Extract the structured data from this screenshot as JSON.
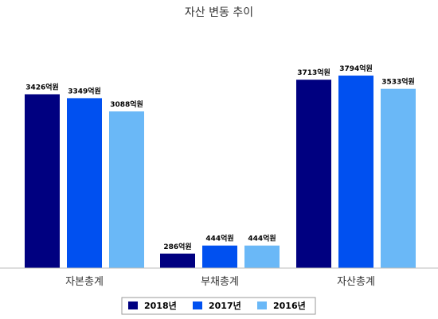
{
  "chart_data": {
    "type": "bar",
    "title": "자산 변동 추이",
    "categories": [
      "자본총계",
      "부채총계",
      "자산총계"
    ],
    "series": [
      {
        "name": "2018년",
        "color": "#000080",
        "values": [
          3426,
          286,
          3713
        ],
        "labels": [
          "3426억원",
          "286억원",
          "3713억원"
        ]
      },
      {
        "name": "2017년",
        "color": "#0050f0",
        "values": [
          3349,
          444,
          3794
        ],
        "labels": [
          "3349억원",
          "444억원",
          "3794억원"
        ]
      },
      {
        "name": "2016년",
        "color": "#6ab8f7",
        "values": [
          3088,
          444,
          3533
        ],
        "labels": [
          "3088억원",
          "444억원",
          "3533억원"
        ]
      }
    ],
    "ylim": [
      0,
      4500
    ],
    "grid": false,
    "legend": "bottom",
    "xlabel": "",
    "ylabel": ""
  }
}
